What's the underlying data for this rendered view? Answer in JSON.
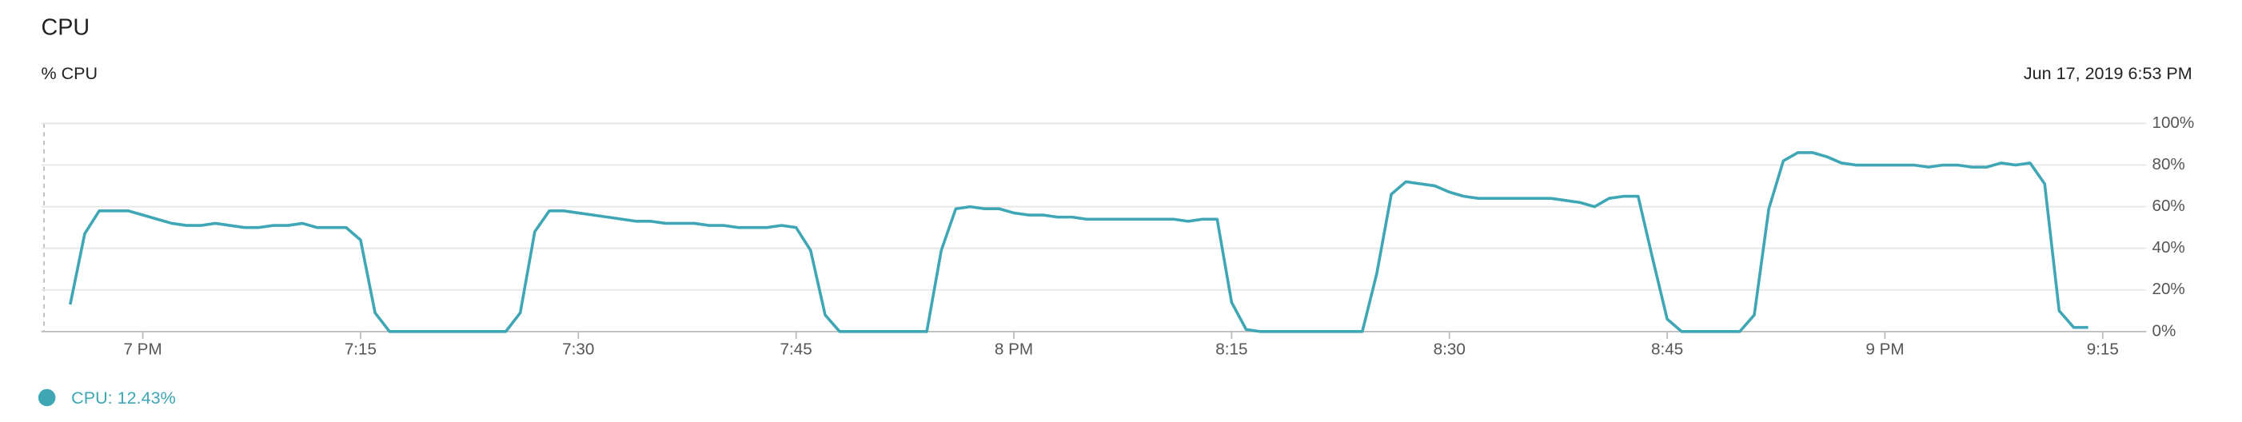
{
  "chart_data": {
    "type": "line",
    "title": "CPU",
    "y_axis_label": "% CPU",
    "timestamp": "Jun 17, 2019 6:53 PM",
    "legend_label": "CPU: 12.43%",
    "x": [
      "18:55",
      "18:56",
      "18:57",
      "18:58",
      "18:59",
      "19:00",
      "19:01",
      "19:02",
      "19:03",
      "19:04",
      "19:05",
      "19:06",
      "19:07",
      "19:08",
      "19:09",
      "19:10",
      "19:11",
      "19:12",
      "19:13",
      "19:14",
      "19:15",
      "19:16",
      "19:17",
      "19:18",
      "19:19",
      "19:20",
      "19:21",
      "19:22",
      "19:23",
      "19:24",
      "19:25",
      "19:26",
      "19:27",
      "19:28",
      "19:29",
      "19:30",
      "19:31",
      "19:32",
      "19:33",
      "19:34",
      "19:35",
      "19:36",
      "19:37",
      "19:38",
      "19:39",
      "19:40",
      "19:41",
      "19:42",
      "19:43",
      "19:44",
      "19:45",
      "19:46",
      "19:47",
      "19:48",
      "19:49",
      "19:50",
      "19:51",
      "19:52",
      "19:53",
      "19:54",
      "19:55",
      "19:56",
      "19:57",
      "19:58",
      "19:59",
      "20:00",
      "20:01",
      "20:02",
      "20:03",
      "20:04",
      "20:05",
      "20:06",
      "20:07",
      "20:08",
      "20:09",
      "20:10",
      "20:11",
      "20:12",
      "20:13",
      "20:14",
      "20:15",
      "20:16",
      "20:17",
      "20:18",
      "20:19",
      "20:20",
      "20:21",
      "20:22",
      "20:23",
      "20:24",
      "20:25",
      "20:26",
      "20:27",
      "20:28",
      "20:29",
      "20:30",
      "20:31",
      "20:32",
      "20:33",
      "20:34",
      "20:35",
      "20:36",
      "20:37",
      "20:38",
      "20:39",
      "20:40",
      "20:41",
      "20:42",
      "20:43",
      "20:44",
      "20:45",
      "20:46",
      "20:47",
      "20:48",
      "20:49",
      "20:50",
      "20:51",
      "20:52",
      "20:53",
      "20:54",
      "20:55",
      "20:56",
      "20:57",
      "20:58",
      "20:59",
      "21:00",
      "21:01",
      "21:02",
      "21:03",
      "21:04",
      "21:05",
      "21:06",
      "21:07",
      "21:08",
      "21:09",
      "21:10",
      "21:11",
      "21:12",
      "21:13",
      "21:14"
    ],
    "series": [
      {
        "name": "CPU",
        "color": "#3ea6b4",
        "values": [
          13,
          47,
          58,
          58,
          58,
          56,
          54,
          52,
          51,
          51,
          52,
          51,
          50,
          50,
          51,
          51,
          52,
          50,
          50,
          50,
          44,
          9,
          0,
          0,
          0,
          0,
          0,
          0,
          0,
          0,
          0,
          9,
          48,
          58,
          58,
          57,
          56,
          55,
          54,
          53,
          53,
          52,
          52,
          52,
          51,
          51,
          50,
          50,
          50,
          51,
          50,
          39,
          8,
          0,
          0,
          0,
          0,
          0,
          0,
          0,
          39,
          59,
          60,
          59,
          59,
          57,
          56,
          56,
          55,
          55,
          54,
          54,
          54,
          54,
          54,
          54,
          54,
          53,
          54,
          54,
          14,
          1,
          0,
          0,
          0,
          0,
          0,
          0,
          0,
          0,
          28,
          66,
          72,
          71,
          70,
          67,
          65,
          64,
          64,
          64,
          64,
          64,
          64,
          63,
          62,
          60,
          64,
          65,
          65,
          35,
          6,
          0,
          0,
          0,
          0,
          0,
          8,
          59,
          82,
          86,
          86,
          84,
          81,
          80,
          80,
          80,
          80,
          80,
          79,
          80,
          80,
          79,
          79,
          81,
          80,
          81,
          71,
          10,
          2,
          2
        ]
      }
    ],
    "xlim": [
      "18:53",
      "21:18"
    ],
    "xticks": [
      {
        "value": "19:00",
        "label": "7 PM"
      },
      {
        "value": "19:15",
        "label": "7:15"
      },
      {
        "value": "19:30",
        "label": "7:30"
      },
      {
        "value": "19:45",
        "label": "7:45"
      },
      {
        "value": "20:00",
        "label": "8 PM"
      },
      {
        "value": "20:15",
        "label": "8:15"
      },
      {
        "value": "20:30",
        "label": "8:30"
      },
      {
        "value": "20:45",
        "label": "8:45"
      },
      {
        "value": "21:00",
        "label": "9 PM"
      },
      {
        "value": "21:15",
        "label": "9:15"
      }
    ],
    "ylim": [
      0,
      100
    ],
    "yticks": [
      {
        "value": 0,
        "label": "0%"
      },
      {
        "value": 20,
        "label": "20%"
      },
      {
        "value": 40,
        "label": "40%"
      },
      {
        "value": 60,
        "label": "60%"
      },
      {
        "value": 80,
        "label": "80%"
      },
      {
        "value": 100,
        "label": "100%"
      }
    ],
    "grid": true
  }
}
